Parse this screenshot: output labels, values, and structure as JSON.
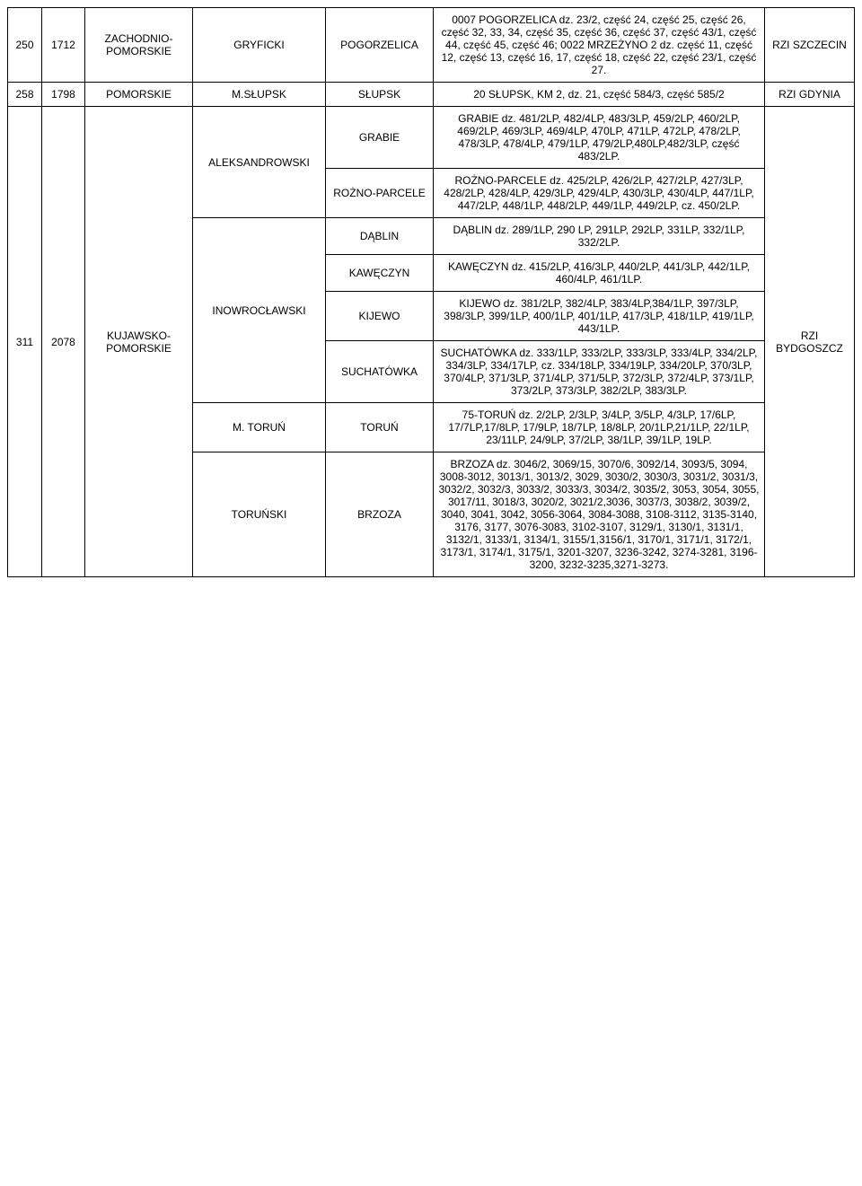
{
  "table": {
    "rows": [
      {
        "c1": "250",
        "c2": "1712",
        "c3": "ZACHODNIO-POMORSKIE",
        "c4": "GRYFICKI",
        "c5": "POGORZELICA",
        "c6": "0007 POGORZELICA dz. 23/2, część 24, część 25, część 26, część 32, 33, 34, część 35, część 36, część 37, część 43/1, część 44, część 45, część 46; 0022 MRZEŻYNO 2 dz. część 11, część 12, część 13, część 16, 17, część 18, część 22, część 23/1, część 27.",
        "c7": "RZI SZCZECIN"
      },
      {
        "c1": "258",
        "c2": "1798",
        "c3": "POMORSKIE",
        "c4": "M.SŁUPSK",
        "c5": "SŁUPSK",
        "c6": "20 SŁUPSK, KM 2, dz. 21, część 584/3, część 585/2",
        "c7": "RZI GDYNIA"
      }
    ],
    "block311": {
      "c1": "311",
      "c2": "2078",
      "c3": "KUJAWSKO-POMORSKIE",
      "c7": "RZI BYDGOSZCZ",
      "groups": [
        {
          "district": "ALEKSANDROWSKI",
          "subs": [
            {
              "loc": "GRABIE",
              "desc": "GRABIE dz. 481/2LP, 482/4LP, 483/3LP, 459/2LP, 460/2LP, 469/2LP, 469/3LP, 469/4LP, 470LP, 471LP, 472LP, 478/2LP, 478/3LP, 478/4LP, 479/1LP, 479/2LP,480LP,482/3LP, część 483/2LP."
            },
            {
              "loc": "ROŻNO-PARCELE",
              "desc": "ROŻNO-PARCELE dz. 425/2LP, 426/2LP, 427/2LP, 427/3LP, 428/2LP, 428/4LP, 429/3LP, 429/4LP, 430/3LP, 430/4LP, 447/1LP, 447/2LP, 448/1LP, 448/2LP, 449/1LP, 449/2LP, cz. 450/2LP."
            }
          ]
        },
        {
          "district": "INOWROCŁAWSKI",
          "subs": [
            {
              "loc": "DĄBLIN",
              "desc": "DĄBLIN dz. 289/1LP, 290 LP, 291LP, 292LP, 331LP, 332/1LP, 332/2LP."
            },
            {
              "loc": "KAWĘCZYN",
              "desc": "KAWĘCZYN dz. 415/2LP, 416/3LP, 440/2LP, 441/3LP, 442/1LP, 460/4LP, 461/1LP."
            },
            {
              "loc": "KIJEWO",
              "desc": "KIJEWO dz. 381/2LP, 382/4LP, 383/4LP,384/1LP, 397/3LP, 398/3LP, 399/1LP, 400/1LP, 401/1LP, 417/3LP, 418/1LP, 419/1LP, 443/1LP."
            },
            {
              "loc": "SUCHATÓWKA",
              "desc": "SUCHATÓWKA dz. 333/1LP, 333/2LP, 333/3LP, 333/4LP, 334/2LP, 334/3LP, 334/17LP, cz. 334/18LP, 334/19LP, 334/20LP, 370/3LP, 370/4LP, 371/3LP, 371/4LP, 371/5LP, 372/3LP, 372/4LP, 373/1LP, 373/2LP, 373/3LP, 382/2LP, 383/3LP."
            }
          ]
        },
        {
          "district": "M. TORUŃ",
          "subs": [
            {
              "loc": "TORUŃ",
              "desc": "75-TORUŃ dz. 2/2LP, 2/3LP, 3/4LP, 3/5LP, 4/3LP, 17/6LP, 17/7LP,17/8LP, 17/9LP, 18/7LP, 18/8LP, 20/1LP,21/1LP, 22/1LP, 23/11LP, 24/9LP, 37/2LP, 38/1LP, 39/1LP, 19LP."
            }
          ]
        },
        {
          "district": "TORUŃSKI",
          "subs": [
            {
              "loc": "BRZOZA",
              "desc": "BRZOZA dz. 3046/2, 3069/15, 3070/6, 3092/14, 3093/5, 3094, 3008-3012, 3013/1, 3013/2, 3029, 3030/2, 3030/3, 3031/2, 3031/3, 3032/2, 3032/3, 3033/2, 3033/3, 3034/2, 3035/2, 3053, 3054, 3055, 3017/11, 3018/3, 3020/2, 3021/2,3036, 3037/3, 3038/2, 3039/2, 3040, 3041, 3042, 3056-3064, 3084-3088, 3108-3112, 3135-3140, 3176, 3177, 3076-3083, 3102-3107, 3129/1, 3130/1, 3131/1, 3132/1, 3133/1, 3134/1, 3155/1,3156/1, 3170/1, 3171/1, 3172/1, 3173/1, 3174/1, 3175/1, 3201-3207, 3236-3242, 3274-3281, 3196-3200, 3232-3235,3271-3273."
            }
          ]
        }
      ]
    }
  }
}
